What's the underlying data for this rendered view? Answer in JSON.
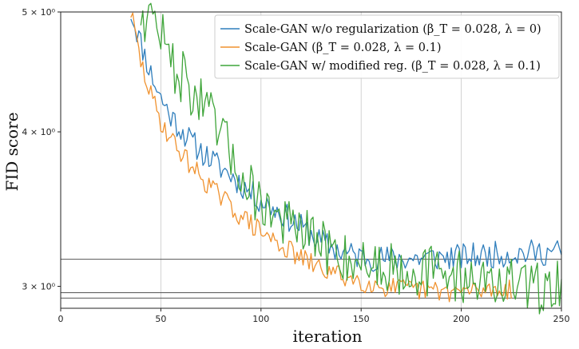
{
  "chart_data": {
    "type": "line",
    "title": "",
    "xlabel": "iteration",
    "ylabel": "FID score",
    "y_scale": "log",
    "xlim": [
      0,
      250
    ],
    "ylim": [
      2.88,
      5.0
    ],
    "x_ticks": [
      0,
      50,
      100,
      150,
      200,
      250
    ],
    "x_tick_labels": [
      "0",
      "50",
      "100",
      "150",
      "200",
      "250"
    ],
    "y_ticks": [
      5,
      4,
      3
    ],
    "y_tick_labels": [
      "5 × 10⁰",
      "4 × 10⁰",
      "3 × 10⁰"
    ],
    "grid": true,
    "legend_position": "top-right",
    "horizontal_lines": [
      {
        "y": 3.155,
        "color": "#555555"
      },
      {
        "y": 2.965,
        "color": "#555555"
      },
      {
        "y": 2.935,
        "color": "#555555"
      }
    ],
    "series": [
      {
        "name": "Scale-GAN w/o regularization (β_T = 0.028, λ = 0)",
        "color": "#2f7ebc",
        "x": [
          35,
          40,
          45,
          50,
          55,
          60,
          65,
          70,
          75,
          80,
          85,
          90,
          95,
          100,
          110,
          120,
          130,
          140,
          150,
          160,
          175,
          200,
          225,
          250
        ],
        "values": [
          5.0,
          4.72,
          4.46,
          4.26,
          4.12,
          4.02,
          3.93,
          3.86,
          3.8,
          3.74,
          3.69,
          3.63,
          3.57,
          3.52,
          3.44,
          3.35,
          3.26,
          3.2,
          3.17,
          3.16,
          3.16,
          3.17,
          3.19,
          3.2
        ],
        "noise": 0.025,
        "seed": 11
      },
      {
        "name": "Scale-GAN (β_T = 0.028, λ = 0.1)",
        "color": "#f0922f",
        "x": [
          35,
          40,
          45,
          50,
          55,
          60,
          65,
          70,
          75,
          80,
          85,
          90,
          95,
          100,
          110,
          120,
          130,
          140,
          150,
          160,
          175,
          200,
          225
        ],
        "values": [
          5.0,
          4.55,
          4.28,
          4.08,
          3.95,
          3.85,
          3.76,
          3.68,
          3.61,
          3.54,
          3.48,
          3.42,
          3.37,
          3.32,
          3.24,
          3.16,
          3.1,
          3.06,
          3.03,
          3.0,
          2.98,
          2.97,
          2.99
        ],
        "noise": 0.02,
        "seed": 29
      },
      {
        "name": "Scale-GAN w/ modified reg. (β_T = 0.028, λ = 0.1)",
        "color": "#3fa53a",
        "x": [
          40,
          45,
          50,
          52,
          55,
          60,
          65,
          70,
          75,
          80,
          85,
          90,
          95,
          100,
          105,
          110,
          120,
          130,
          140,
          150,
          160,
          175,
          200,
          225,
          240,
          250
        ],
        "values": [
          5.0,
          4.95,
          4.85,
          4.7,
          4.55,
          4.45,
          4.33,
          4.22,
          4.1,
          3.97,
          3.84,
          3.7,
          3.6,
          3.52,
          3.45,
          3.4,
          3.32,
          3.24,
          3.18,
          3.14,
          3.12,
          3.1,
          3.06,
          3.01,
          2.99,
          3.03
        ],
        "noise": 0.05,
        "seed": 47
      }
    ]
  }
}
